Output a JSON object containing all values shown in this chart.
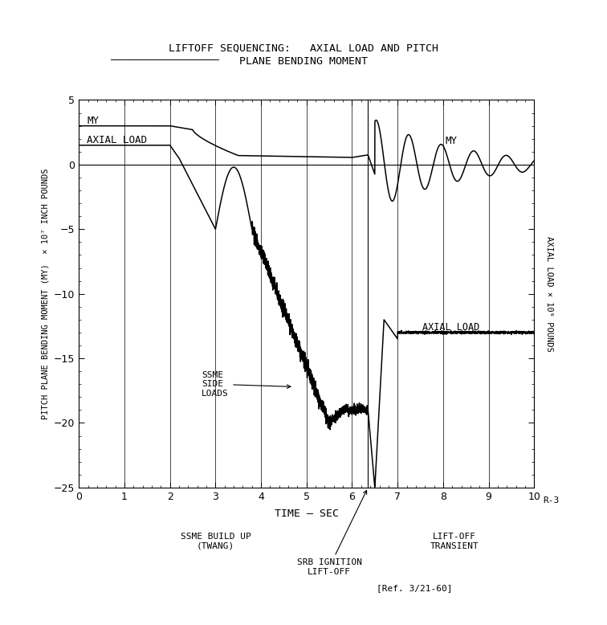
{
  "title_part1": "LIFTOFF SEQUENCING:",
  "title_part2": "  AXIAL LOAD AND PITCH",
  "title_line2": "PLANE BENDING MOMENT",
  "xlabel": "TIME - SEC",
  "ylabel_left": "PITCH PLANE BENDING MOMENT (MY)  X 10",
  "ylabel_left2": "7",
  "ylabel_left3": " INCH POUNDS",
  "ylabel_right": "AXIAL LOAD X 10",
  "ylabel_right2": "6",
  "ylabel_right3": " POUNDS",
  "xlim": [
    0,
    10
  ],
  "ylim": [
    -25,
    5
  ],
  "xticks": [
    0,
    1,
    2,
    3,
    4,
    5,
    6,
    7,
    8,
    9,
    10
  ],
  "yticks": [
    -25,
    -20,
    -15,
    -10,
    -5,
    0,
    5
  ],
  "background_color": "#ffffff",
  "line_color": "#000000",
  "ref_text": "[Ref. 3/21-60]",
  "r3_text": "R-3"
}
